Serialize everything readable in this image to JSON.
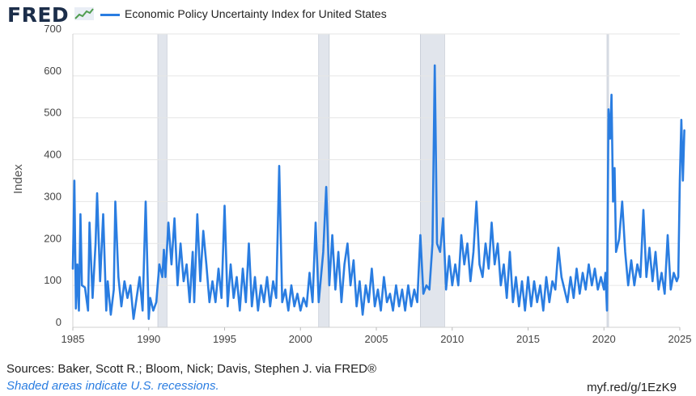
{
  "header": {
    "logo_text": "FRED",
    "logo_icon": "trend-line-icon",
    "series_title": "Economic Policy Uncertainty Index for United States"
  },
  "footer": {
    "sources": "Sources: Baker, Scott R.; Bloom, Nick; Davis, Stephen J. via FRED®",
    "note": "Shaded areas indicate U.S. recessions.",
    "link": "myf.red/g/1EzK9"
  },
  "colors": {
    "series": "#2a7de1",
    "recession": "#e1e5ec",
    "grid": "#e6e6e6",
    "logo": "#1c2e4a"
  },
  "chart_data": {
    "type": "line",
    "title": "Economic Policy Uncertainty Index for United States",
    "xlabel": "",
    "ylabel": "Index",
    "xlim": [
      1985,
      2025
    ],
    "ylim": [
      0,
      700
    ],
    "x_ticks": [
      "1985",
      "1990",
      "1995",
      "2000",
      "2005",
      "2010",
      "2015",
      "2020",
      "2025"
    ],
    "y_ticks": [
      "0",
      "100",
      "200",
      "300",
      "400",
      "500",
      "600",
      "700"
    ],
    "grid": true,
    "recessions": [
      [
        1990.6,
        1991.2
      ],
      [
        2001.2,
        2001.9
      ],
      [
        2007.9,
        2009.5
      ],
      [
        2020.2,
        2020.3
      ]
    ],
    "series": [
      {
        "name": "Economic Policy Uncertainty Index for United States",
        "points": [
          [
            1985.0,
            140
          ],
          [
            1985.1,
            350
          ],
          [
            1985.2,
            45
          ],
          [
            1985.3,
            150
          ],
          [
            1985.4,
            40
          ],
          [
            1985.5,
            270
          ],
          [
            1985.6,
            100
          ],
          [
            1985.8,
            95
          ],
          [
            1986.0,
            40
          ],
          [
            1986.1,
            250
          ],
          [
            1986.3,
            70
          ],
          [
            1986.5,
            200
          ],
          [
            1986.6,
            320
          ],
          [
            1986.8,
            110
          ],
          [
            1987.0,
            270
          ],
          [
            1987.2,
            40
          ],
          [
            1987.3,
            110
          ],
          [
            1987.5,
            30
          ],
          [
            1987.7,
            90
          ],
          [
            1987.8,
            300
          ],
          [
            1988.0,
            120
          ],
          [
            1988.2,
            50
          ],
          [
            1988.4,
            110
          ],
          [
            1988.6,
            70
          ],
          [
            1988.8,
            100
          ],
          [
            1989.0,
            20
          ],
          [
            1989.2,
            70
          ],
          [
            1989.4,
            120
          ],
          [
            1989.6,
            40
          ],
          [
            1989.8,
            300
          ],
          [
            1990.0,
            20
          ],
          [
            1990.1,
            70
          ],
          [
            1990.3,
            40
          ],
          [
            1990.5,
            60
          ],
          [
            1990.7,
            150
          ],
          [
            1990.9,
            120
          ],
          [
            1991.0,
            185
          ],
          [
            1991.1,
            120
          ],
          [
            1991.3,
            250
          ],
          [
            1991.5,
            150
          ],
          [
            1991.7,
            260
          ],
          [
            1991.9,
            100
          ],
          [
            1992.1,
            200
          ],
          [
            1992.3,
            110
          ],
          [
            1992.5,
            150
          ],
          [
            1992.7,
            60
          ],
          [
            1992.9,
            180
          ],
          [
            1993.0,
            60
          ],
          [
            1993.2,
            270
          ],
          [
            1993.4,
            110
          ],
          [
            1993.6,
            230
          ],
          [
            1993.8,
            150
          ],
          [
            1994.0,
            60
          ],
          [
            1994.2,
            110
          ],
          [
            1994.4,
            60
          ],
          [
            1994.6,
            140
          ],
          [
            1994.8,
            70
          ],
          [
            1995.0,
            290
          ],
          [
            1995.2,
            50
          ],
          [
            1995.4,
            150
          ],
          [
            1995.6,
            70
          ],
          [
            1995.8,
            120
          ],
          [
            1996.0,
            40
          ],
          [
            1996.2,
            140
          ],
          [
            1996.4,
            60
          ],
          [
            1996.6,
            200
          ],
          [
            1996.8,
            50
          ],
          [
            1997.0,
            120
          ],
          [
            1997.2,
            40
          ],
          [
            1997.4,
            100
          ],
          [
            1997.6,
            60
          ],
          [
            1997.8,
            120
          ],
          [
            1998.0,
            50
          ],
          [
            1998.2,
            110
          ],
          [
            1998.4,
            70
          ],
          [
            1998.6,
            385
          ],
          [
            1998.8,
            60
          ],
          [
            1999.0,
            90
          ],
          [
            1999.2,
            40
          ],
          [
            1999.4,
            100
          ],
          [
            1999.6,
            50
          ],
          [
            1999.8,
            80
          ],
          [
            2000.0,
            40
          ],
          [
            2000.2,
            70
          ],
          [
            2000.4,
            50
          ],
          [
            2000.6,
            130
          ],
          [
            2000.8,
            60
          ],
          [
            2001.0,
            250
          ],
          [
            2001.2,
            60
          ],
          [
            2001.5,
            180
          ],
          [
            2001.7,
            335
          ],
          [
            2001.9,
            100
          ],
          [
            2002.1,
            220
          ],
          [
            2002.3,
            90
          ],
          [
            2002.5,
            180
          ],
          [
            2002.7,
            60
          ],
          [
            2002.9,
            150
          ],
          [
            2003.1,
            200
          ],
          [
            2003.3,
            100
          ],
          [
            2003.5,
            160
          ],
          [
            2003.7,
            50
          ],
          [
            2003.9,
            110
          ],
          [
            2004.1,
            30
          ],
          [
            2004.3,
            100
          ],
          [
            2004.5,
            60
          ],
          [
            2004.7,
            140
          ],
          [
            2004.9,
            50
          ],
          [
            2005.1,
            90
          ],
          [
            2005.3,
            40
          ],
          [
            2005.5,
            120
          ],
          [
            2005.7,
            60
          ],
          [
            2005.9,
            80
          ],
          [
            2006.1,
            40
          ],
          [
            2006.3,
            100
          ],
          [
            2006.5,
            50
          ],
          [
            2006.7,
            90
          ],
          [
            2006.9,
            40
          ],
          [
            2007.1,
            100
          ],
          [
            2007.3,
            50
          ],
          [
            2007.5,
            90
          ],
          [
            2007.7,
            60
          ],
          [
            2007.9,
            220
          ],
          [
            2008.1,
            80
          ],
          [
            2008.3,
            100
          ],
          [
            2008.5,
            90
          ],
          [
            2008.7,
            200
          ],
          [
            2008.85,
            625
          ],
          [
            2009.0,
            200
          ],
          [
            2009.2,
            180
          ],
          [
            2009.4,
            260
          ],
          [
            2009.6,
            90
          ],
          [
            2009.8,
            170
          ],
          [
            2010.0,
            100
          ],
          [
            2010.2,
            150
          ],
          [
            2010.4,
            100
          ],
          [
            2010.6,
            220
          ],
          [
            2010.8,
            150
          ],
          [
            2011.0,
            200
          ],
          [
            2011.2,
            110
          ],
          [
            2011.4,
            180
          ],
          [
            2011.6,
            300
          ],
          [
            2011.8,
            150
          ],
          [
            2012.0,
            120
          ],
          [
            2012.2,
            200
          ],
          [
            2012.4,
            140
          ],
          [
            2012.6,
            250
          ],
          [
            2012.8,
            150
          ],
          [
            2013.0,
            200
          ],
          [
            2013.2,
            100
          ],
          [
            2013.4,
            150
          ],
          [
            2013.6,
            70
          ],
          [
            2013.8,
            180
          ],
          [
            2014.0,
            60
          ],
          [
            2014.2,
            120
          ],
          [
            2014.4,
            50
          ],
          [
            2014.6,
            110
          ],
          [
            2014.8,
            40
          ],
          [
            2015.0,
            120
          ],
          [
            2015.2,
            50
          ],
          [
            2015.4,
            110
          ],
          [
            2015.6,
            60
          ],
          [
            2015.8,
            100
          ],
          [
            2016.0,
            40
          ],
          [
            2016.2,
            120
          ],
          [
            2016.4,
            60
          ],
          [
            2016.6,
            110
          ],
          [
            2016.8,
            90
          ],
          [
            2017.0,
            190
          ],
          [
            2017.2,
            120
          ],
          [
            2017.4,
            90
          ],
          [
            2017.6,
            60
          ],
          [
            2017.8,
            120
          ],
          [
            2018.0,
            70
          ],
          [
            2018.2,
            140
          ],
          [
            2018.4,
            80
          ],
          [
            2018.6,
            130
          ],
          [
            2018.8,
            90
          ],
          [
            2019.0,
            150
          ],
          [
            2019.2,
            100
          ],
          [
            2019.4,
            140
          ],
          [
            2019.6,
            90
          ],
          [
            2019.8,
            120
          ],
          [
            2020.0,
            90
          ],
          [
            2020.1,
            130
          ],
          [
            2020.2,
            40
          ],
          [
            2020.3,
            520
          ],
          [
            2020.4,
            450
          ],
          [
            2020.5,
            555
          ],
          [
            2020.6,
            300
          ],
          [
            2020.7,
            380
          ],
          [
            2020.8,
            180
          ],
          [
            2021.0,
            210
          ],
          [
            2021.2,
            300
          ],
          [
            2021.4,
            180
          ],
          [
            2021.6,
            100
          ],
          [
            2021.8,
            160
          ],
          [
            2022.0,
            100
          ],
          [
            2022.2,
            150
          ],
          [
            2022.4,
            120
          ],
          [
            2022.6,
            280
          ],
          [
            2022.8,
            120
          ],
          [
            2023.0,
            190
          ],
          [
            2023.2,
            110
          ],
          [
            2023.4,
            180
          ],
          [
            2023.6,
            90
          ],
          [
            2023.8,
            130
          ],
          [
            2024.0,
            80
          ],
          [
            2024.2,
            220
          ],
          [
            2024.4,
            90
          ],
          [
            2024.6,
            130
          ],
          [
            2024.8,
            110
          ],
          [
            2024.9,
            120
          ],
          [
            2025.0,
            350
          ],
          [
            2025.1,
            495
          ],
          [
            2025.2,
            350
          ],
          [
            2025.3,
            470
          ]
        ]
      }
    ]
  }
}
